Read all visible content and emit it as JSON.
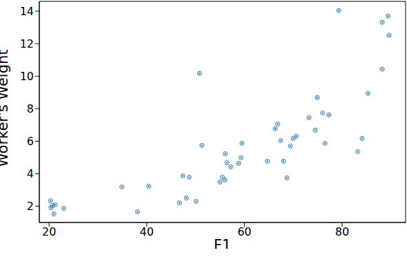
{
  "chart_data": {
    "type": "scatter",
    "x_label": "F1",
    "y_label": "Worker's Weight",
    "xlim": [
      18,
      93
    ],
    "ylim": [
      1,
      14.6
    ],
    "xticks": [
      20,
      40,
      60,
      80
    ],
    "yticks": [
      2,
      4,
      6,
      8,
      10,
      12,
      14
    ],
    "grid": false,
    "color": "#1f77b4",
    "marker": "o",
    "x": [
      20.3,
      20.4,
      20.7,
      21.0,
      21.3,
      23.0,
      34.9,
      40.4,
      38.1,
      46.7,
      47.4,
      48.1,
      48.7,
      50.1,
      50.8,
      51.3,
      55.0,
      55.5,
      56.0,
      56.1,
      56.4,
      57.2,
      58.8,
      59.3,
      59.5,
      64.7,
      66.3,
      66.8,
      67.4,
      68.0,
      68.7,
      69.4,
      70.0,
      70.6,
      73.2,
      74.5,
      74.9,
      76.0,
      76.5,
      77.3,
      79.3,
      83.2,
      84.1,
      85.3,
      88.2,
      88.2,
      89.4,
      89.6
    ],
    "values": [
      2.34,
      1.91,
      2.04,
      1.53,
      2.09,
      1.87,
      3.19,
      3.23,
      1.66,
      2.21,
      3.87,
      2.51,
      3.79,
      2.3,
      10.17,
      5.74,
      3.49,
      3.79,
      3.62,
      5.23,
      4.68,
      4.43,
      4.64,
      4.98,
      5.87,
      4.77,
      6.77,
      7.06,
      6.04,
      4.77,
      3.74,
      5.7,
      6.17,
      6.3,
      7.45,
      6.68,
      8.68,
      7.74,
      5.87,
      7.62,
      14.04,
      5.36,
      6.17,
      8.94,
      13.32,
      10.43,
      13.7,
      12.51
    ]
  }
}
